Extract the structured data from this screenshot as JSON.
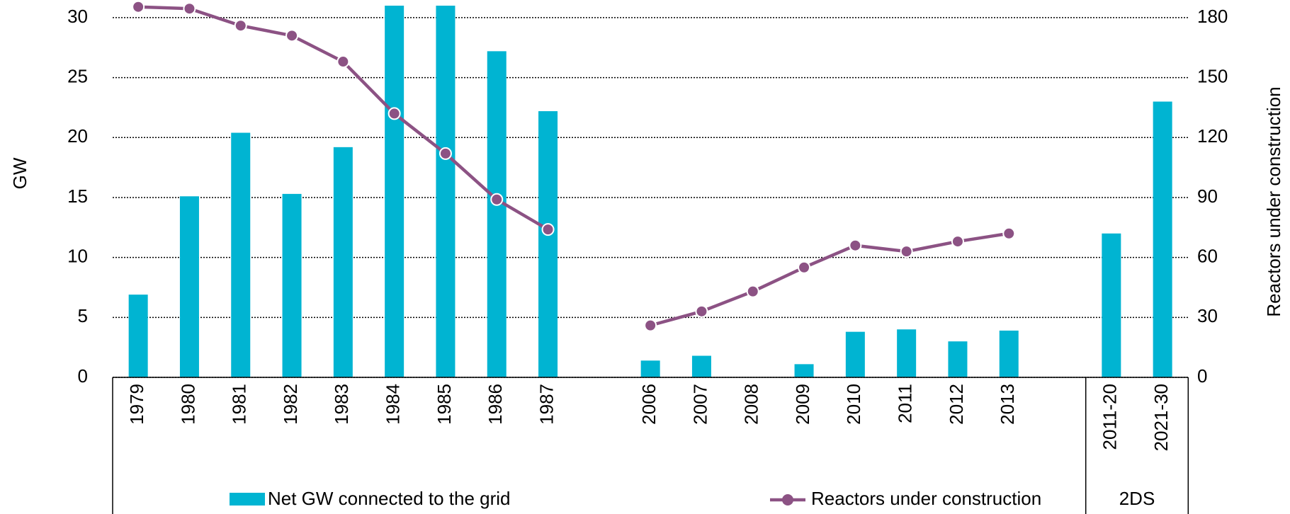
{
  "chart_data": {
    "type": "bar",
    "categories": [
      "1979",
      "1980",
      "1981",
      "1982",
      "1983",
      "1984",
      "1985",
      "1986",
      "1987",
      null,
      "2006",
      "2007",
      "2008",
      "2009",
      "2010",
      "2011",
      "2012",
      "2013",
      null,
      "2011-20",
      "2021-30"
    ],
    "group_label": "2DS",
    "y_label": "GW",
    "y2_label": "Reactors under construction",
    "ylim": [
      0,
      31
    ],
    "yticks": [
      0,
      5,
      10,
      15,
      20,
      25,
      30
    ],
    "y2lim": [
      0,
      186
    ],
    "y2ticks": [
      0,
      30,
      60,
      90,
      120,
      150,
      180
    ],
    "grid": true,
    "series": [
      {
        "name": "Net GW connected to the grid",
        "type": "bar",
        "color": "#00b4d2",
        "values": [
          6.9,
          15.1,
          20.4,
          15.3,
          19.2,
          31,
          31,
          27.2,
          22.2,
          null,
          1.4,
          1.8,
          0,
          1.1,
          3.8,
          4.0,
          3.0,
          3.9,
          null,
          12.0,
          23.0
        ]
      },
      {
        "name": "Reactors under construction",
        "type": "line",
        "axis": "y2",
        "color": "#8c5284",
        "values": [
          185.4,
          184.5,
          176,
          171,
          158,
          132,
          112,
          89,
          74,
          null,
          26,
          33,
          43,
          55,
          66,
          63,
          68,
          72,
          null,
          null,
          null
        ]
      }
    ]
  }
}
